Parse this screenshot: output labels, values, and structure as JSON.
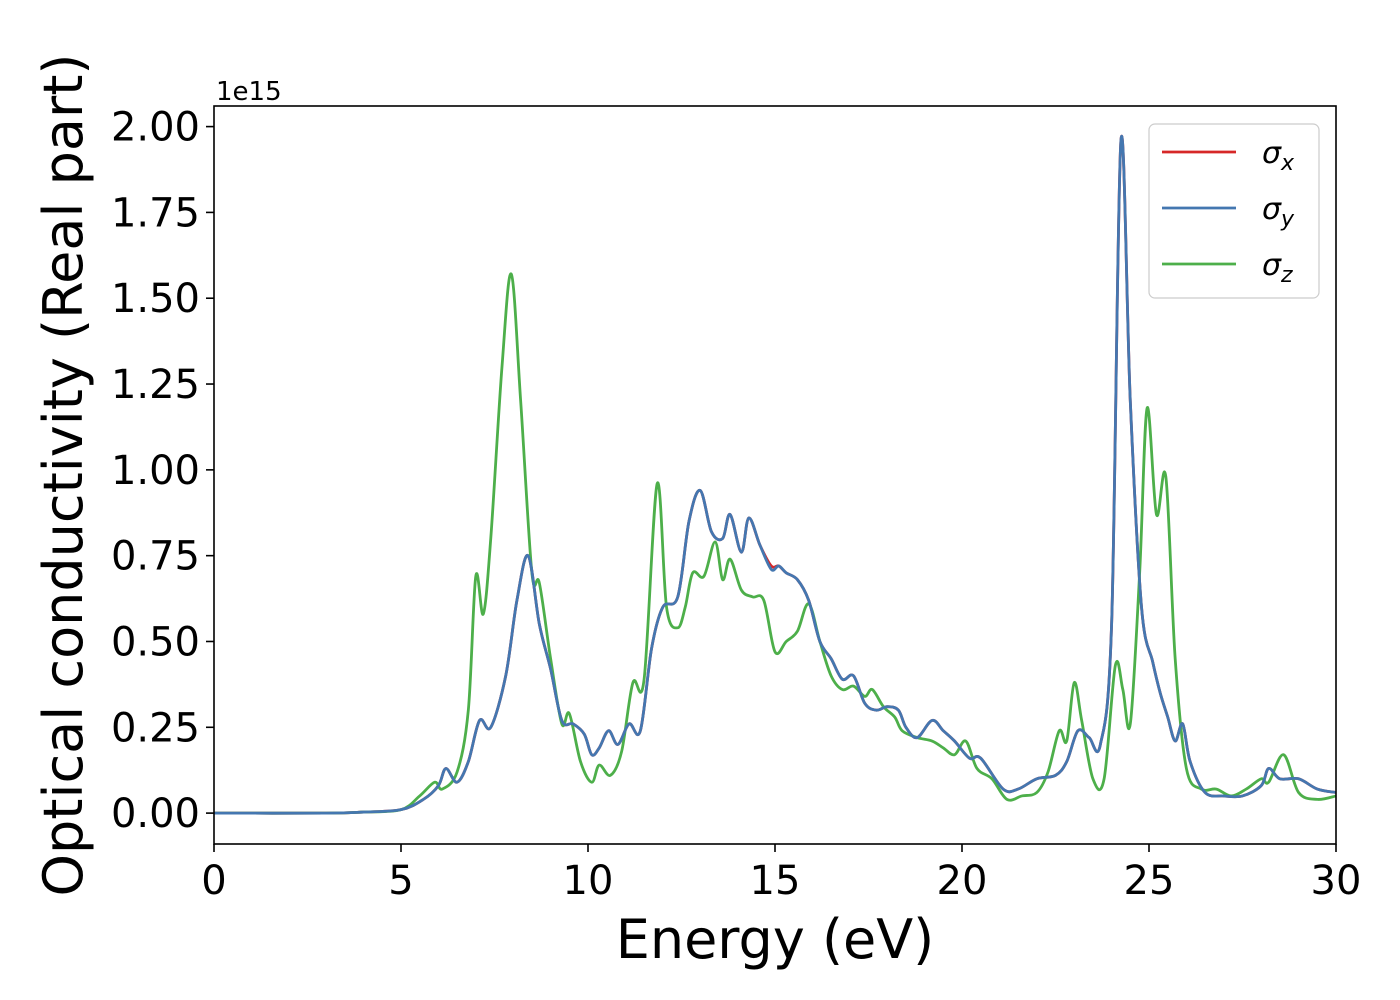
{
  "chart_data": {
    "type": "line",
    "title": "",
    "xlabel": "Energy (eV)",
    "ylabel": "Optical conductivity (Real part)",
    "y_offset_label": "1e15",
    "xlim": [
      0,
      30
    ],
    "ylim": [
      -0.09,
      2.06
    ],
    "x_ticks": [
      0,
      5,
      10,
      15,
      20,
      25,
      30
    ],
    "x_tick_labels": [
      "0",
      "5",
      "10",
      "15",
      "20",
      "25",
      "30"
    ],
    "y_ticks": [
      0.0,
      0.25,
      0.5,
      0.75,
      1.0,
      1.25,
      1.5,
      1.75,
      2.0
    ],
    "y_tick_labels": [
      "0.00",
      "0.25",
      "0.50",
      "0.75",
      "1.00",
      "1.25",
      "1.50",
      "1.75",
      "2.00"
    ],
    "grid": false,
    "legend_position": "top-right",
    "series": [
      {
        "name": "σx",
        "base": "σ",
        "sub": "x",
        "color": "#d62728",
        "points": [
          [
            0,
            0
          ],
          [
            3,
            0
          ],
          [
            4,
            0.003
          ],
          [
            5,
            0.01
          ],
          [
            5.6,
            0.04
          ],
          [
            6,
            0.08
          ],
          [
            6.2,
            0.13
          ],
          [
            6.5,
            0.09
          ],
          [
            6.8,
            0.15
          ],
          [
            7.1,
            0.27
          ],
          [
            7.4,
            0.25
          ],
          [
            7.8,
            0.4
          ],
          [
            8.1,
            0.62
          ],
          [
            8.4,
            0.75
          ],
          [
            8.7,
            0.55
          ],
          [
            9,
            0.42
          ],
          [
            9.3,
            0.27
          ],
          [
            9.6,
            0.26
          ],
          [
            9.9,
            0.23
          ],
          [
            10.1,
            0.17
          ],
          [
            10.3,
            0.19
          ],
          [
            10.55,
            0.24
          ],
          [
            10.8,
            0.2
          ],
          [
            11.1,
            0.26
          ],
          [
            11.4,
            0.24
          ],
          [
            11.7,
            0.48
          ],
          [
            12,
            0.6
          ],
          [
            12.4,
            0.63
          ],
          [
            12.7,
            0.85
          ],
          [
            13,
            0.94
          ],
          [
            13.3,
            0.82
          ],
          [
            13.6,
            0.8
          ],
          [
            13.8,
            0.87
          ],
          [
            14.1,
            0.76
          ],
          [
            14.3,
            0.86
          ],
          [
            14.6,
            0.78
          ],
          [
            14.9,
            0.72
          ],
          [
            15.1,
            0.72
          ],
          [
            15.3,
            0.7
          ],
          [
            15.6,
            0.68
          ],
          [
            15.9,
            0.62
          ],
          [
            16.2,
            0.5
          ],
          [
            16.5,
            0.45
          ],
          [
            16.8,
            0.39
          ],
          [
            17.1,
            0.4
          ],
          [
            17.4,
            0.32
          ],
          [
            17.7,
            0.3
          ],
          [
            18,
            0.31
          ],
          [
            18.3,
            0.3
          ],
          [
            18.5,
            0.25
          ],
          [
            18.8,
            0.22
          ],
          [
            19.2,
            0.27
          ],
          [
            19.5,
            0.24
          ],
          [
            19.8,
            0.21
          ],
          [
            20.2,
            0.16
          ],
          [
            20.5,
            0.16
          ],
          [
            21.1,
            0.07
          ],
          [
            21.5,
            0.07
          ],
          [
            22,
            0.1
          ],
          [
            22.5,
            0.11
          ],
          [
            22.8,
            0.15
          ],
          [
            23.1,
            0.24
          ],
          [
            23.4,
            0.22
          ],
          [
            23.7,
            0.2
          ],
          [
            24,
            0.55
          ],
          [
            24.25,
            1.96
          ],
          [
            24.5,
            1.2
          ],
          [
            24.8,
            0.6
          ],
          [
            25.1,
            0.44
          ],
          [
            25.3,
            0.35
          ],
          [
            25.5,
            0.28
          ],
          [
            25.7,
            0.21
          ],
          [
            25.9,
            0.26
          ],
          [
            26.1,
            0.15
          ],
          [
            26.5,
            0.06
          ],
          [
            27,
            0.05
          ],
          [
            27.5,
            0.05
          ],
          [
            28,
            0.08
          ],
          [
            28.2,
            0.13
          ],
          [
            28.5,
            0.1
          ],
          [
            29,
            0.1
          ],
          [
            29.5,
            0.07
          ],
          [
            30,
            0.06
          ]
        ]
      },
      {
        "name": "σy",
        "base": "σ",
        "sub": "y",
        "color": "#4477b0",
        "points": [
          [
            0,
            0
          ],
          [
            3,
            0
          ],
          [
            4,
            0.003
          ],
          [
            5,
            0.01
          ],
          [
            5.6,
            0.04
          ],
          [
            6,
            0.08
          ],
          [
            6.2,
            0.13
          ],
          [
            6.5,
            0.09
          ],
          [
            6.8,
            0.15
          ],
          [
            7.1,
            0.27
          ],
          [
            7.4,
            0.25
          ],
          [
            7.8,
            0.4
          ],
          [
            8.1,
            0.62
          ],
          [
            8.4,
            0.75
          ],
          [
            8.7,
            0.55
          ],
          [
            9,
            0.42
          ],
          [
            9.3,
            0.27
          ],
          [
            9.6,
            0.26
          ],
          [
            9.9,
            0.23
          ],
          [
            10.1,
            0.17
          ],
          [
            10.3,
            0.19
          ],
          [
            10.55,
            0.24
          ],
          [
            10.8,
            0.2
          ],
          [
            11.1,
            0.26
          ],
          [
            11.4,
            0.24
          ],
          [
            11.7,
            0.48
          ],
          [
            12,
            0.6
          ],
          [
            12.4,
            0.63
          ],
          [
            12.7,
            0.85
          ],
          [
            13,
            0.94
          ],
          [
            13.3,
            0.82
          ],
          [
            13.6,
            0.8
          ],
          [
            13.8,
            0.87
          ],
          [
            14.1,
            0.76
          ],
          [
            14.3,
            0.86
          ],
          [
            14.6,
            0.78
          ],
          [
            14.9,
            0.71
          ],
          [
            15.1,
            0.72
          ],
          [
            15.3,
            0.7
          ],
          [
            15.6,
            0.68
          ],
          [
            15.9,
            0.62
          ],
          [
            16.2,
            0.5
          ],
          [
            16.5,
            0.45
          ],
          [
            16.8,
            0.39
          ],
          [
            17.1,
            0.4
          ],
          [
            17.4,
            0.32
          ],
          [
            17.7,
            0.3
          ],
          [
            18,
            0.31
          ],
          [
            18.3,
            0.3
          ],
          [
            18.5,
            0.25
          ],
          [
            18.8,
            0.22
          ],
          [
            19.2,
            0.27
          ],
          [
            19.5,
            0.24
          ],
          [
            19.8,
            0.21
          ],
          [
            20.2,
            0.16
          ],
          [
            20.5,
            0.16
          ],
          [
            21.1,
            0.07
          ],
          [
            21.5,
            0.07
          ],
          [
            22,
            0.1
          ],
          [
            22.5,
            0.11
          ],
          [
            22.8,
            0.15
          ],
          [
            23.1,
            0.24
          ],
          [
            23.4,
            0.22
          ],
          [
            23.7,
            0.2
          ],
          [
            24,
            0.55
          ],
          [
            24.25,
            1.96
          ],
          [
            24.5,
            1.2
          ],
          [
            24.8,
            0.6
          ],
          [
            25.1,
            0.44
          ],
          [
            25.3,
            0.35
          ],
          [
            25.5,
            0.28
          ],
          [
            25.7,
            0.21
          ],
          [
            25.9,
            0.26
          ],
          [
            26.1,
            0.15
          ],
          [
            26.5,
            0.06
          ],
          [
            27,
            0.05
          ],
          [
            27.5,
            0.05
          ],
          [
            28,
            0.08
          ],
          [
            28.2,
            0.13
          ],
          [
            28.5,
            0.1
          ],
          [
            29,
            0.1
          ],
          [
            29.5,
            0.07
          ],
          [
            30,
            0.06
          ]
        ]
      },
      {
        "name": "σz",
        "base": "σ",
        "sub": "z",
        "color": "#4daf4a",
        "points": [
          [
            0,
            0
          ],
          [
            3,
            0
          ],
          [
            4,
            0.003
          ],
          [
            5,
            0.01
          ],
          [
            5.5,
            0.05
          ],
          [
            5.9,
            0.09
          ],
          [
            6.1,
            0.07
          ],
          [
            6.5,
            0.12
          ],
          [
            6.8,
            0.3
          ],
          [
            7,
            0.69
          ],
          [
            7.2,
            0.58
          ],
          [
            7.4,
            0.8
          ],
          [
            7.7,
            1.3
          ],
          [
            7.95,
            1.57
          ],
          [
            8.2,
            1.2
          ],
          [
            8.5,
            0.7
          ],
          [
            8.7,
            0.67
          ],
          [
            9,
            0.45
          ],
          [
            9.3,
            0.26
          ],
          [
            9.5,
            0.29
          ],
          [
            9.8,
            0.15
          ],
          [
            10.1,
            0.09
          ],
          [
            10.3,
            0.14
          ],
          [
            10.6,
            0.11
          ],
          [
            10.9,
            0.18
          ],
          [
            11.2,
            0.38
          ],
          [
            11.5,
            0.39
          ],
          [
            11.85,
            0.96
          ],
          [
            12.1,
            0.6
          ],
          [
            12.4,
            0.54
          ],
          [
            12.6,
            0.6
          ],
          [
            12.8,
            0.7
          ],
          [
            13.1,
            0.69
          ],
          [
            13.4,
            0.79
          ],
          [
            13.6,
            0.68
          ],
          [
            13.8,
            0.74
          ],
          [
            14.1,
            0.65
          ],
          [
            14.4,
            0.63
          ],
          [
            14.7,
            0.62
          ],
          [
            15,
            0.47
          ],
          [
            15.3,
            0.5
          ],
          [
            15.6,
            0.53
          ],
          [
            15.9,
            0.61
          ],
          [
            16.2,
            0.5
          ],
          [
            16.5,
            0.4
          ],
          [
            16.8,
            0.36
          ],
          [
            17.1,
            0.37
          ],
          [
            17.4,
            0.34
          ],
          [
            17.6,
            0.36
          ],
          [
            17.9,
            0.31
          ],
          [
            18.2,
            0.28
          ],
          [
            18.4,
            0.24
          ],
          [
            18.8,
            0.22
          ],
          [
            19.2,
            0.21
          ],
          [
            19.5,
            0.19
          ],
          [
            19.8,
            0.17
          ],
          [
            20.1,
            0.21
          ],
          [
            20.4,
            0.13
          ],
          [
            20.8,
            0.1
          ],
          [
            21.2,
            0.04
          ],
          [
            21.6,
            0.05
          ],
          [
            22,
            0.06
          ],
          [
            22.3,
            0.12
          ],
          [
            22.6,
            0.24
          ],
          [
            22.8,
            0.21
          ],
          [
            23,
            0.38
          ],
          [
            23.2,
            0.27
          ],
          [
            23.5,
            0.1
          ],
          [
            23.8,
            0.1
          ],
          [
            24.1,
            0.43
          ],
          [
            24.3,
            0.36
          ],
          [
            24.5,
            0.26
          ],
          [
            24.75,
            0.7
          ],
          [
            24.95,
            1.18
          ],
          [
            25.2,
            0.87
          ],
          [
            25.45,
            0.98
          ],
          [
            25.7,
            0.45
          ],
          [
            26,
            0.13
          ],
          [
            26.4,
            0.07
          ],
          [
            26.8,
            0.07
          ],
          [
            27.2,
            0.05
          ],
          [
            27.6,
            0.07
          ],
          [
            28,
            0.1
          ],
          [
            28.2,
            0.09
          ],
          [
            28.6,
            0.17
          ],
          [
            29,
            0.06
          ],
          [
            29.5,
            0.04
          ],
          [
            30,
            0.05
          ]
        ]
      }
    ]
  }
}
